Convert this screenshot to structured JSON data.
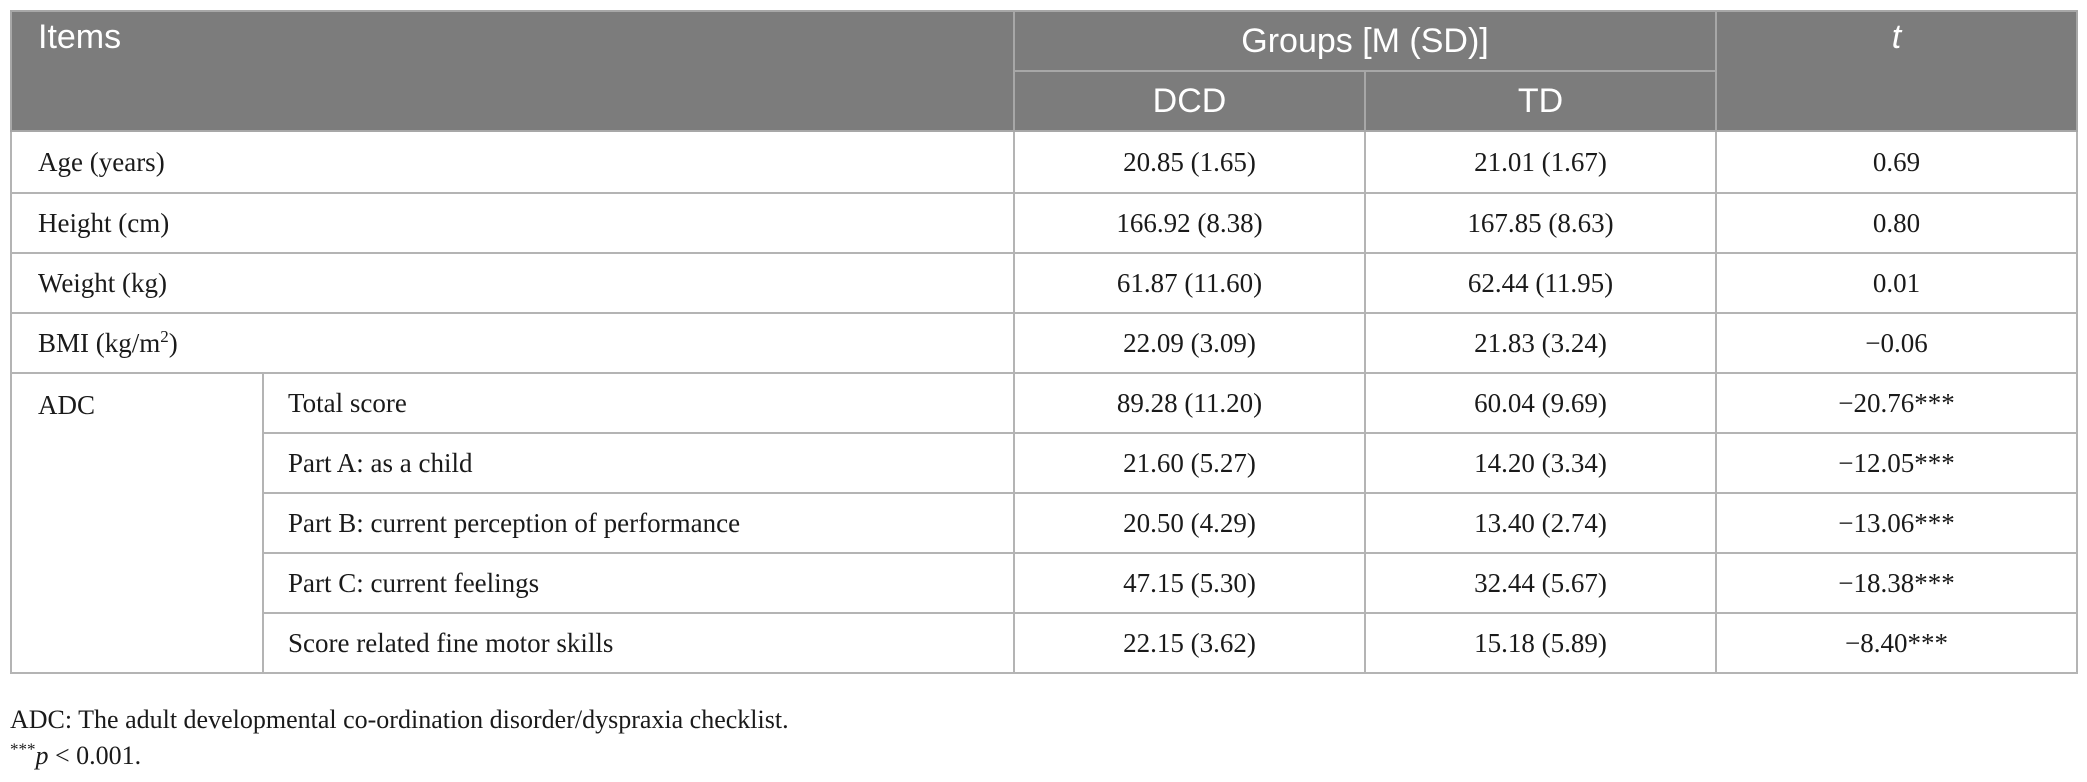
{
  "table": {
    "header": {
      "items": "Items",
      "groups": "Groups [M (SD)]",
      "t": "t",
      "dcd": "DCD",
      "td": "TD"
    },
    "rows": [
      {
        "label": "Age (years)",
        "dcd": "20.85 (1.65)",
        "td": "21.01 (1.67)",
        "t": "0.69"
      },
      {
        "label": "Height (cm)",
        "dcd": "166.92 (8.38)",
        "td": "167.85 (8.63)",
        "t": "0.80"
      },
      {
        "label": "Weight (kg)",
        "dcd": "61.87 (11.60)",
        "td": "62.44 (11.95)",
        "t": "0.01"
      },
      {
        "label_main": "BMI (kg/m",
        "label_sup": "2",
        "label_end": ")",
        "dcd": "22.09 (3.09)",
        "td": "21.83 (3.24)",
        "t": "−0.06"
      }
    ],
    "adc": {
      "label": "ADC",
      "rows": [
        {
          "label": "Total score",
          "dcd": "89.28 (11.20)",
          "td": "60.04 (9.69)",
          "t": "−20.76***"
        },
        {
          "label": "Part A: as a child",
          "dcd": "21.60 (5.27)",
          "td": "14.20 (3.34)",
          "t": "−12.05***"
        },
        {
          "label": "Part B: current perception of performance",
          "dcd": "20.50 (4.29)",
          "td": "13.40 (2.74)",
          "t": "−13.06***"
        },
        {
          "label": "Part C: current feelings",
          "dcd": "47.15 (5.30)",
          "td": "32.44 (5.67)",
          "t": "−18.38***"
        },
        {
          "label": "Score related fine motor skills",
          "dcd": "22.15 (3.62)",
          "td": "15.18 (5.89)",
          "t": "−8.40***"
        }
      ]
    }
  },
  "footnotes": {
    "adc_definition": "ADC: The adult developmental co-ordination disorder/dyspraxia checklist.",
    "sig_stars": "***",
    "sig_p": "p",
    "sig_rest": " < 0.001."
  },
  "colors": {
    "header_bg": "#7c7c7c",
    "header_text": "#ffffff",
    "grid": "#b4b4b4"
  }
}
